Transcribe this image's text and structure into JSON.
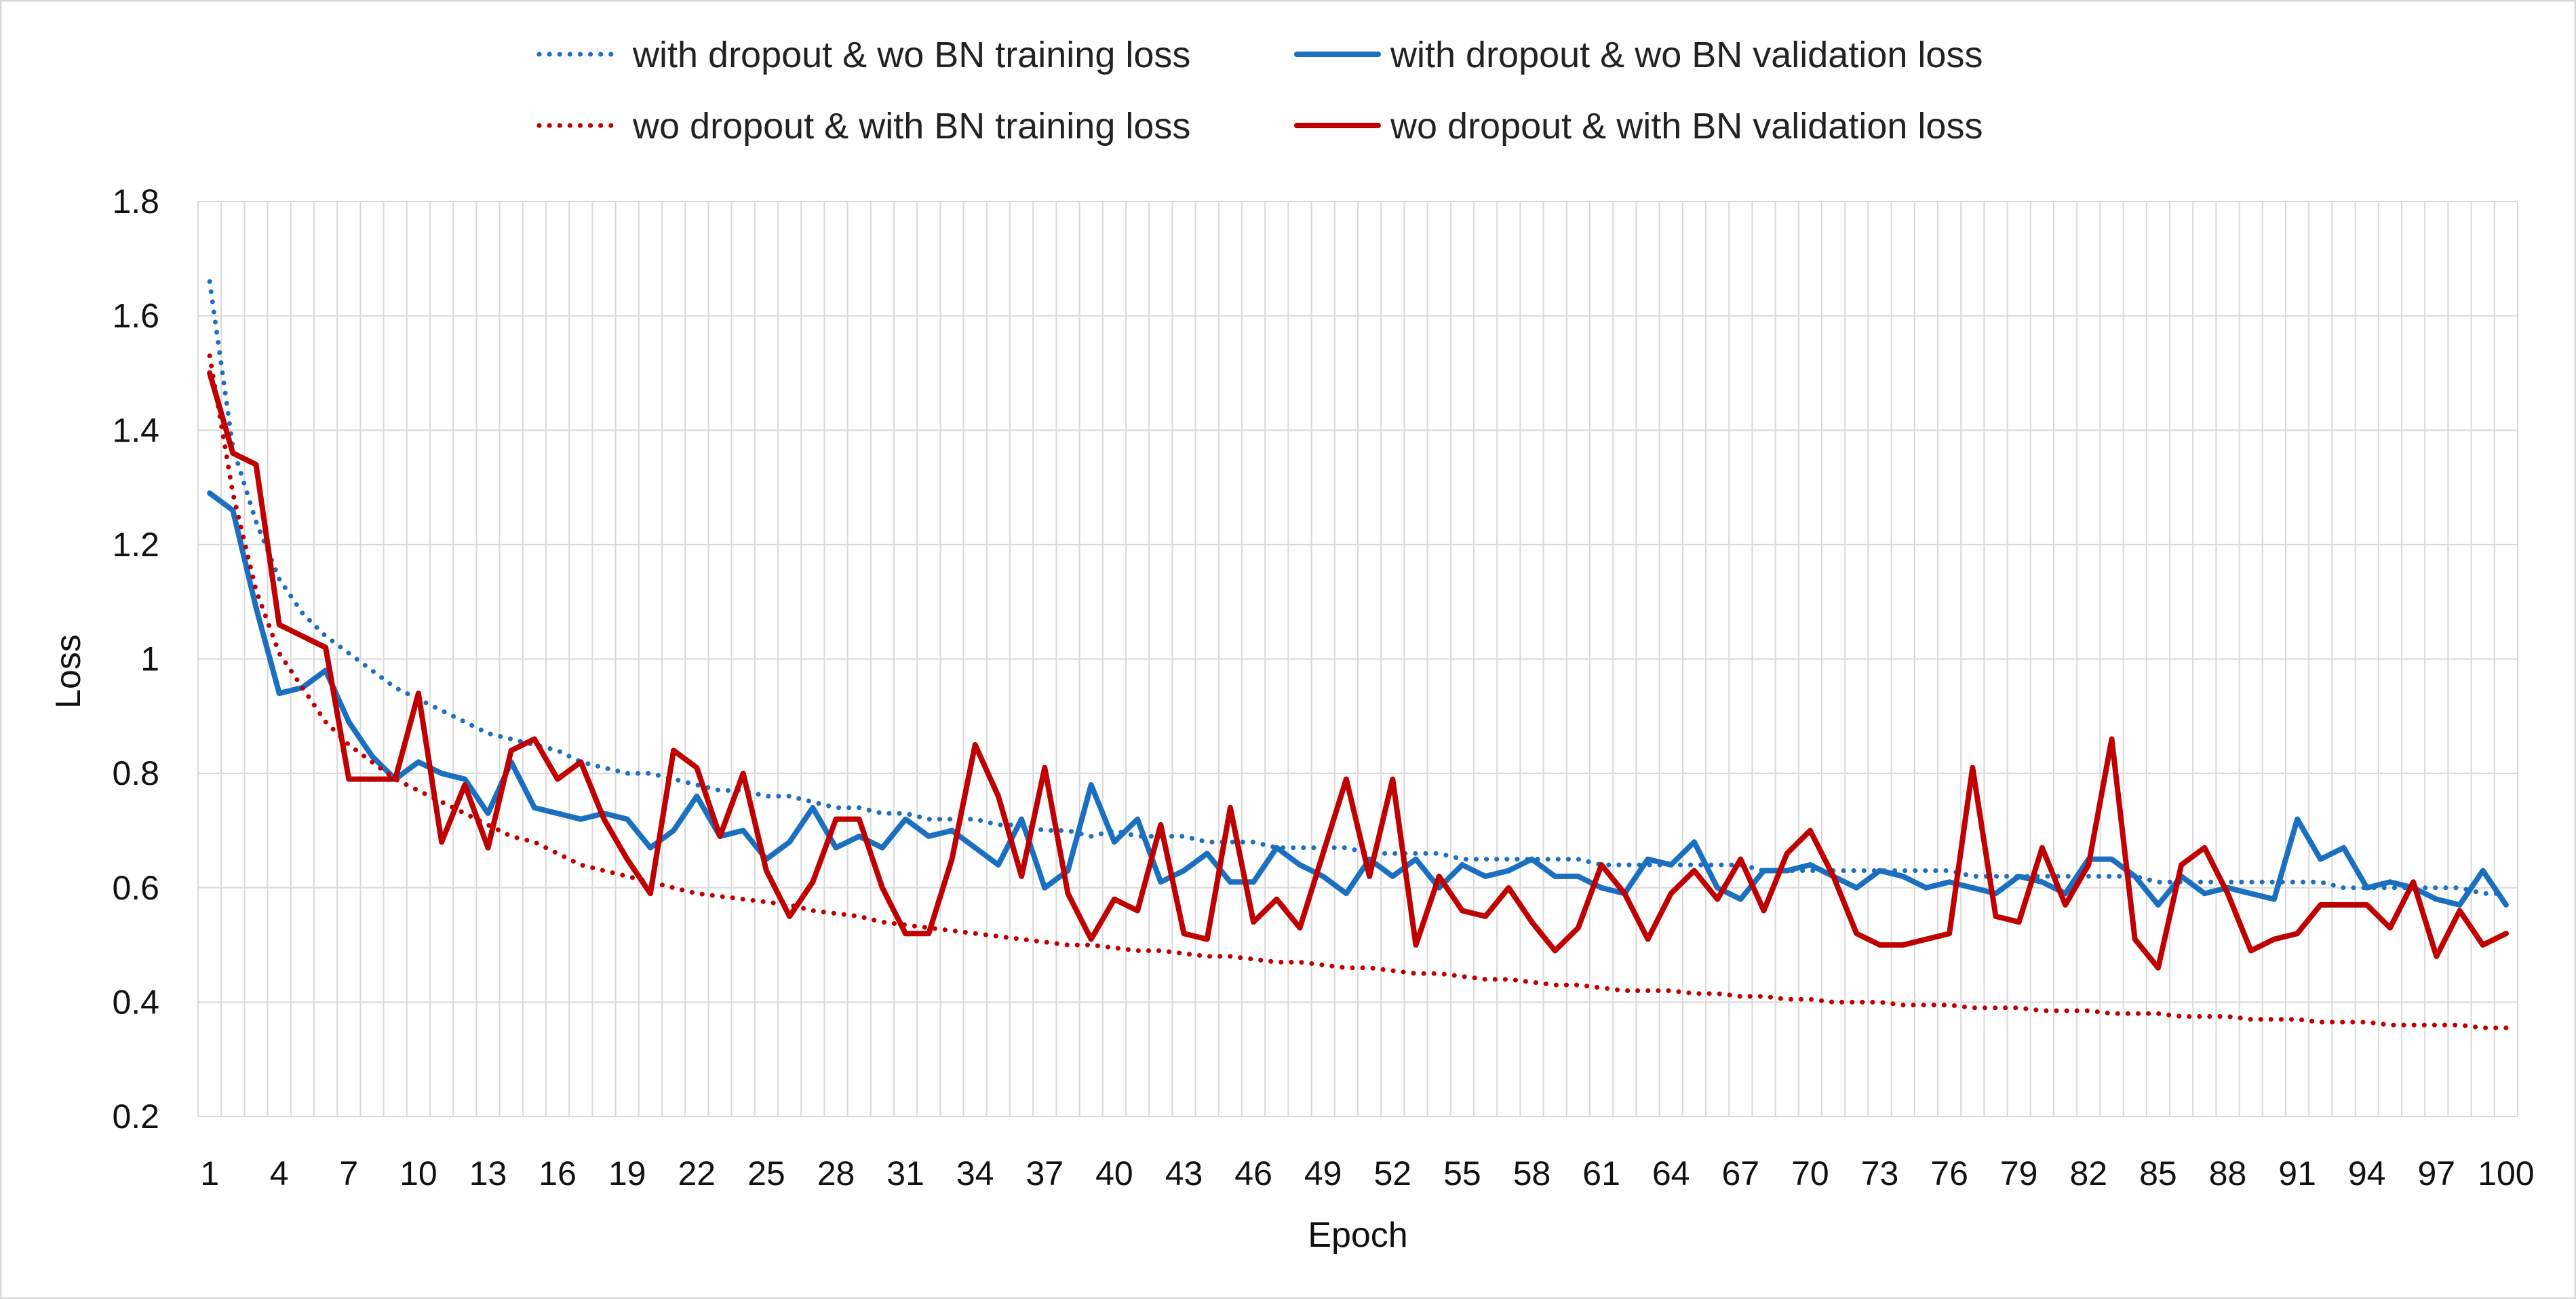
{
  "chart_data": {
    "type": "line",
    "title": "",
    "xlabel": "Epoch",
    "ylabel": "Loss",
    "ylim": [
      0.2,
      1.8
    ],
    "yticks": [
      "0.2",
      "0.4",
      "0.6",
      "0.8",
      "1",
      "1.2",
      "1.4",
      "1.6",
      "1.8"
    ],
    "x_start": 1,
    "x_end": 100,
    "xtick_labels": [
      "1",
      "4",
      "7",
      "10",
      "13",
      "16",
      "19",
      "22",
      "25",
      "28",
      "31",
      "34",
      "37",
      "40",
      "43",
      "46",
      "49",
      "52",
      "55",
      "58",
      "61",
      "64",
      "67",
      "70",
      "73",
      "76",
      "79",
      "82",
      "85",
      "88",
      "91",
      "94",
      "97",
      "100"
    ],
    "grid": "vertical and horizontal gridlines",
    "legend_position": "top",
    "series": [
      {
        "name": "with dropout & wo BN training loss",
        "style": "dotted",
        "color": "#1f6fc0",
        "values": [
          1.66,
          1.37,
          1.24,
          1.14,
          1.08,
          1.04,
          1.01,
          0.98,
          0.95,
          0.93,
          0.91,
          0.89,
          0.87,
          0.86,
          0.85,
          0.84,
          0.82,
          0.81,
          0.8,
          0.8,
          0.79,
          0.78,
          0.77,
          0.77,
          0.76,
          0.76,
          0.75,
          0.74,
          0.74,
          0.73,
          0.73,
          0.72,
          0.72,
          0.72,
          0.71,
          0.71,
          0.7,
          0.7,
          0.69,
          0.7,
          0.69,
          0.69,
          0.69,
          0.68,
          0.68,
          0.68,
          0.67,
          0.67,
          0.67,
          0.67,
          0.66,
          0.66,
          0.66,
          0.66,
          0.65,
          0.65,
          0.65,
          0.65,
          0.65,
          0.65,
          0.64,
          0.64,
          0.64,
          0.64,
          0.64,
          0.64,
          0.64,
          0.63,
          0.63,
          0.63,
          0.63,
          0.63,
          0.63,
          0.63,
          0.63,
          0.63,
          0.62,
          0.62,
          0.62,
          0.62,
          0.62,
          0.62,
          0.62,
          0.62,
          0.61,
          0.61,
          0.61,
          0.61,
          0.61,
          0.61,
          0.61,
          0.61,
          0.6,
          0.6,
          0.6,
          0.6,
          0.6,
          0.6,
          0.59,
          0.59
        ]
      },
      {
        "name": "with dropout & wo BN validation loss",
        "style": "solid",
        "color": "#1a6fc0",
        "values": [
          1.29,
          1.26,
          1.09,
          0.94,
          0.95,
          0.98,
          0.89,
          0.83,
          0.79,
          0.82,
          0.8,
          0.79,
          0.73,
          0.82,
          0.74,
          0.73,
          0.72,
          0.73,
          0.72,
          0.67,
          0.7,
          0.76,
          0.69,
          0.7,
          0.65,
          0.68,
          0.74,
          0.67,
          0.69,
          0.67,
          0.72,
          0.69,
          0.7,
          0.67,
          0.64,
          0.72,
          0.6,
          0.63,
          0.78,
          0.68,
          0.72,
          0.61,
          0.63,
          0.66,
          0.61,
          0.61,
          0.67,
          0.64,
          0.62,
          0.59,
          0.65,
          0.62,
          0.65,
          0.6,
          0.64,
          0.62,
          0.63,
          0.65,
          0.62,
          0.62,
          0.6,
          0.59,
          0.65,
          0.64,
          0.68,
          0.6,
          0.58,
          0.63,
          0.63,
          0.64,
          0.62,
          0.6,
          0.63,
          0.62,
          0.6,
          0.61,
          0.6,
          0.59,
          0.62,
          0.61,
          0.59,
          0.65,
          0.65,
          0.62,
          0.57,
          0.62,
          0.59,
          0.6,
          0.59,
          0.58,
          0.72,
          0.65,
          0.67,
          0.6,
          0.61,
          0.6,
          0.58,
          0.57,
          0.63,
          0.57
        ]
      },
      {
        "name": "wo dropout & with BN training loss",
        "style": "dotted",
        "color": "#c00000",
        "values": [
          1.53,
          1.29,
          1.12,
          1.01,
          0.95,
          0.89,
          0.85,
          0.82,
          0.79,
          0.77,
          0.75,
          0.73,
          0.71,
          0.69,
          0.68,
          0.66,
          0.64,
          0.63,
          0.62,
          0.61,
          0.6,
          0.59,
          0.585,
          0.58,
          0.575,
          0.57,
          0.56,
          0.555,
          0.55,
          0.54,
          0.535,
          0.53,
          0.525,
          0.52,
          0.515,
          0.51,
          0.505,
          0.5,
          0.5,
          0.495,
          0.49,
          0.49,
          0.485,
          0.48,
          0.48,
          0.475,
          0.47,
          0.47,
          0.465,
          0.46,
          0.46,
          0.455,
          0.45,
          0.45,
          0.445,
          0.44,
          0.44,
          0.435,
          0.43,
          0.43,
          0.425,
          0.42,
          0.42,
          0.42,
          0.415,
          0.415,
          0.41,
          0.41,
          0.405,
          0.405,
          0.4,
          0.4,
          0.4,
          0.395,
          0.395,
          0.395,
          0.39,
          0.39,
          0.39,
          0.385,
          0.385,
          0.385,
          0.38,
          0.38,
          0.38,
          0.375,
          0.375,
          0.375,
          0.37,
          0.37,
          0.37,
          0.365,
          0.365,
          0.365,
          0.36,
          0.36,
          0.36,
          0.36,
          0.355,
          0.355
        ]
      },
      {
        "name": "wo dropout & with BN validation loss",
        "style": "solid",
        "color": "#c00000",
        "values": [
          1.5,
          1.36,
          1.34,
          1.06,
          1.04,
          1.02,
          0.79,
          0.79,
          0.79,
          0.94,
          0.68,
          0.78,
          0.67,
          0.84,
          0.86,
          0.79,
          0.82,
          0.72,
          0.65,
          0.59,
          0.84,
          0.81,
          0.69,
          0.8,
          0.63,
          0.55,
          0.61,
          0.72,
          0.72,
          0.6,
          0.52,
          0.52,
          0.65,
          0.85,
          0.76,
          0.62,
          0.81,
          0.59,
          0.51,
          0.58,
          0.56,
          0.71,
          0.52,
          0.51,
          0.74,
          0.54,
          0.58,
          0.53,
          0.66,
          0.79,
          0.62,
          0.79,
          0.5,
          0.62,
          0.56,
          0.55,
          0.6,
          0.54,
          0.49,
          0.53,
          0.64,
          0.59,
          0.51,
          0.59,
          0.63,
          0.58,
          0.65,
          0.56,
          0.66,
          0.7,
          0.62,
          0.52,
          0.5,
          0.5,
          0.51,
          0.52,
          0.81,
          0.55,
          0.54,
          0.67,
          0.57,
          0.64,
          0.86,
          0.51,
          0.46,
          0.64,
          0.67,
          0.59,
          0.49,
          0.51,
          0.52,
          0.57,
          0.57,
          0.57,
          0.53,
          0.61,
          0.48,
          0.56,
          0.5,
          0.52
        ]
      }
    ]
  }
}
